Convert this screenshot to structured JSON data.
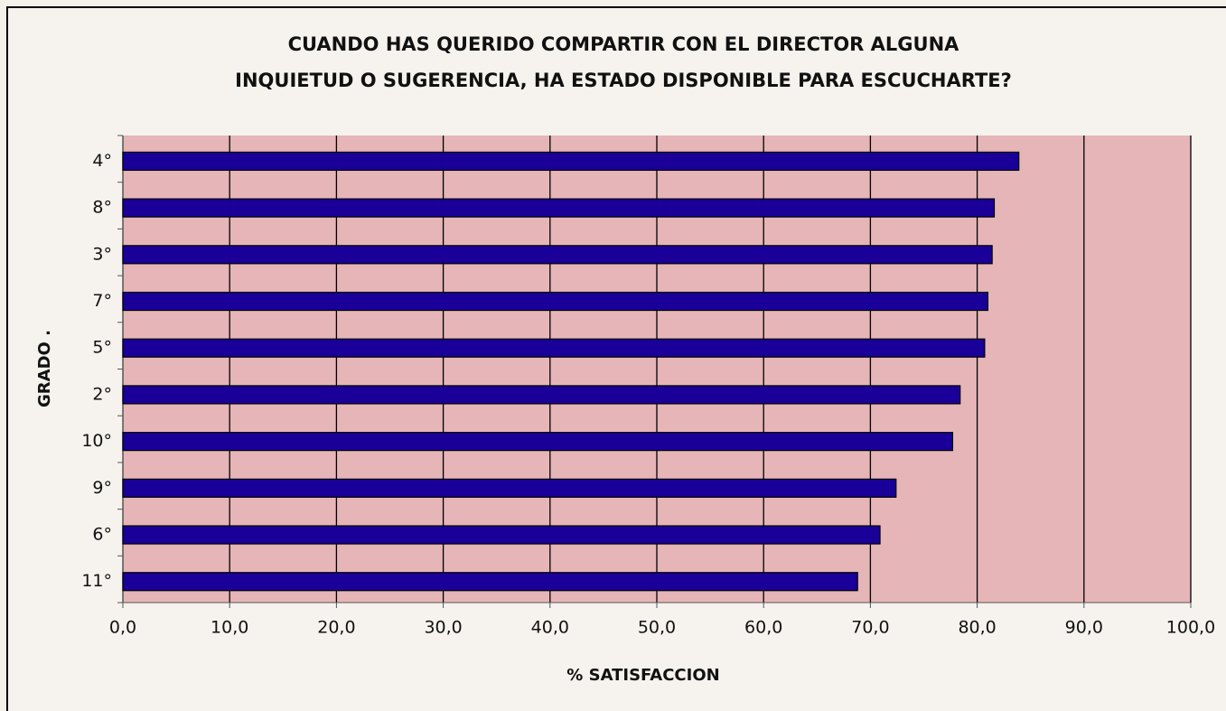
{
  "chart_data": {
    "type": "barh",
    "title": [
      "CUANDO HAS QUERIDO COMPARTIR CON EL DIRECTOR ALGUNA",
      "INQUIETUD O SUGERENCIA, HA ESTADO DISPONIBLE PARA ESCUCHARTE?"
    ],
    "x_label": "% SATISFACCION",
    "y_label": "GRADO .",
    "categories": [
      "4°",
      "8°",
      "3°",
      "7°",
      "5°",
      "2°",
      "10°",
      "9°",
      "6°",
      "11°"
    ],
    "values": [
      83.9,
      81.6,
      81.4,
      81.0,
      80.7,
      78.4,
      77.7,
      72.4,
      70.9,
      68.8
    ],
    "color": "#1a0099",
    "xlim": [
      0,
      100
    ],
    "xticks": [
      {
        "value": 0,
        "label": "0,0"
      },
      {
        "value": 10,
        "label": "10,0"
      },
      {
        "value": 20,
        "label": "20,0"
      },
      {
        "value": 30,
        "label": "30,0"
      },
      {
        "value": 40,
        "label": "40,0"
      },
      {
        "value": 50,
        "label": "50,0"
      },
      {
        "value": 60,
        "label": "60,0"
      },
      {
        "value": 70,
        "label": "70,0"
      },
      {
        "value": 80,
        "label": "80,0"
      },
      {
        "value": 90,
        "label": "90,0"
      },
      {
        "value": 100,
        "label": "100,0"
      }
    ],
    "grid": true
  }
}
